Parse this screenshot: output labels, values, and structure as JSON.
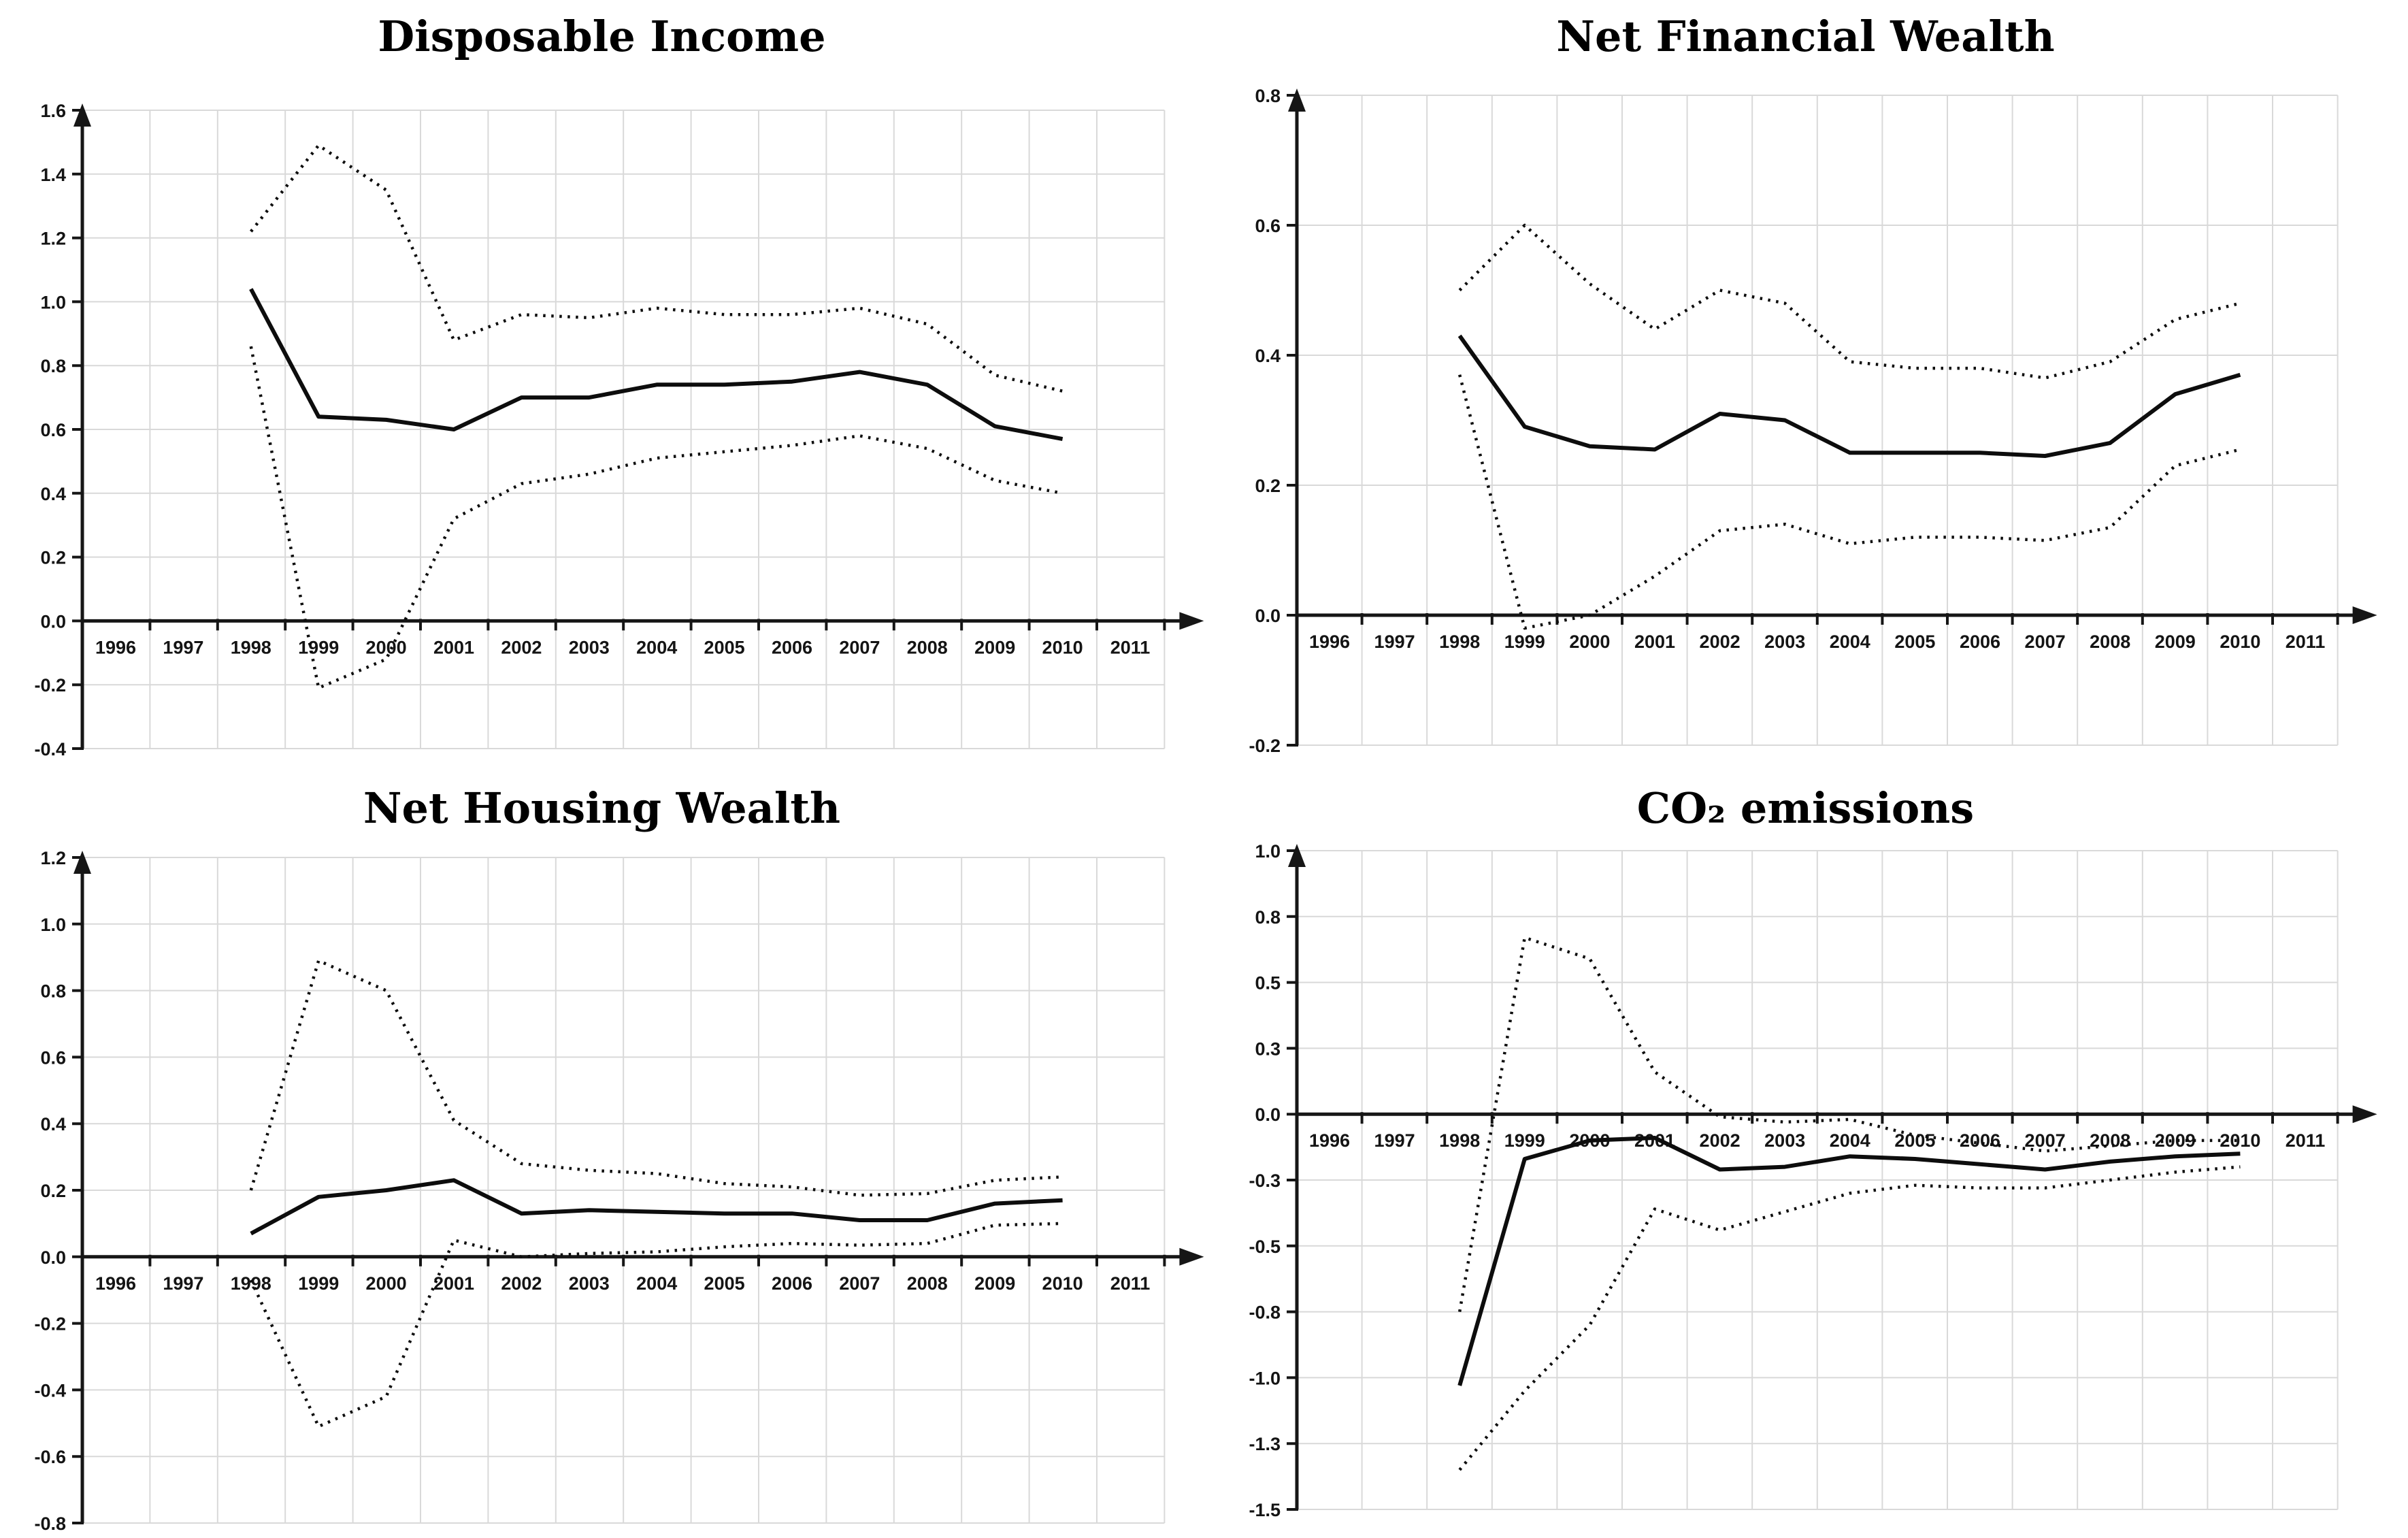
{
  "panel": {
    "background_color": "#ffffff",
    "line_color": "#0d0d0d",
    "grid_color": "#d9d9d9",
    "x_axis_years_shown": [
      1996,
      1997,
      1998,
      1999,
      2000,
      2001,
      2002,
      2003,
      2004,
      2005,
      2006,
      2007,
      2008,
      2009,
      2010,
      2011
    ],
    "data_years": [
      1998,
      1999,
      2000,
      2001,
      2002,
      2003,
      2004,
      2005,
      2006,
      2007,
      2008,
      2009,
      2010
    ]
  },
  "chart_data": [
    {
      "type": "line",
      "title": "Disposable Income",
      "x": [
        1998,
        1999,
        2000,
        2001,
        2002,
        2003,
        2004,
        2005,
        2006,
        2007,
        2008,
        2009,
        2010
      ],
      "series": [
        {
          "name": "central estimate",
          "style": "solid",
          "values": [
            1.04,
            0.64,
            0.63,
            0.6,
            0.7,
            0.7,
            0.74,
            0.74,
            0.75,
            0.78,
            0.74,
            0.61,
            0.57
          ]
        },
        {
          "name": "upper confidence band",
          "style": "dotted",
          "values": [
            1.22,
            1.49,
            1.35,
            0.88,
            0.96,
            0.95,
            0.98,
            0.96,
            0.96,
            0.98,
            0.93,
            0.77,
            0.72
          ]
        },
        {
          "name": "lower confidence band",
          "style": "dotted",
          "values": [
            0.86,
            -0.21,
            -0.12,
            0.32,
            0.43,
            0.46,
            0.51,
            0.53,
            0.55,
            0.58,
            0.54,
            0.44,
            0.4
          ]
        }
      ],
      "xticks": [
        1996,
        1997,
        1998,
        1999,
        2000,
        2001,
        2002,
        2003,
        2004,
        2005,
        2006,
        2007,
        2008,
        2009,
        2010,
        2011
      ],
      "ylim": [
        -0.4,
        1.6
      ],
      "ytick_labels": [
        "1.6",
        "1.4",
        "1.2",
        "1.0",
        "0.8",
        "0.6",
        "0.4",
        "0.2",
        "0.0",
        "-0.2",
        "-0.4"
      ],
      "ytick_values": [
        1.6,
        1.4,
        1.2,
        1.0,
        0.8,
        0.6,
        0.4,
        0.2,
        0.0,
        -0.2,
        -0.4
      ],
      "xlabel": "",
      "ylabel": "",
      "grid": true,
      "legend": "none"
    },
    {
      "type": "line",
      "title": "Net Financial Wealth",
      "x": [
        1998,
        1999,
        2000,
        2001,
        2002,
        2003,
        2004,
        2005,
        2006,
        2007,
        2008,
        2009,
        2010
      ],
      "series": [
        {
          "name": "central estimate",
          "style": "solid",
          "values": [
            0.43,
            0.29,
            0.26,
            0.255,
            0.31,
            0.3,
            0.25,
            0.25,
            0.25,
            0.245,
            0.265,
            0.34,
            0.37
          ]
        },
        {
          "name": "upper confidence band",
          "style": "dotted",
          "values": [
            0.5,
            0.6,
            0.51,
            0.44,
            0.5,
            0.48,
            0.39,
            0.38,
            0.38,
            0.365,
            0.39,
            0.455,
            0.48
          ]
        },
        {
          "name": "lower confidence band",
          "style": "dotted",
          "values": [
            0.37,
            -0.02,
            0.0,
            0.06,
            0.13,
            0.14,
            0.11,
            0.12,
            0.12,
            0.115,
            0.135,
            0.23,
            0.255
          ]
        }
      ],
      "xticks": [
        1996,
        1997,
        1998,
        1999,
        2000,
        2001,
        2002,
        2003,
        2004,
        2005,
        2006,
        2007,
        2008,
        2009,
        2010,
        2011
      ],
      "ylim": [
        -0.2,
        0.8
      ],
      "ytick_labels": [
        "0.8",
        "0.6",
        "0.4",
        "0.2",
        "0.0",
        "-0.2"
      ],
      "ytick_values": [
        0.8,
        0.6,
        0.4,
        0.2,
        0.0,
        -0.2
      ],
      "xlabel": "",
      "ylabel": "",
      "grid": true,
      "legend": "none"
    },
    {
      "type": "line",
      "title": "Net Housing Wealth",
      "x": [
        1998,
        1999,
        2000,
        2001,
        2002,
        2003,
        2004,
        2005,
        2006,
        2007,
        2008,
        2009,
        2010
      ],
      "series": [
        {
          "name": "central estimate",
          "style": "solid",
          "values": [
            0.07,
            0.18,
            0.2,
            0.23,
            0.13,
            0.14,
            0.135,
            0.13,
            0.13,
            0.11,
            0.11,
            0.16,
            0.17
          ]
        },
        {
          "name": "upper confidence band",
          "style": "dotted",
          "values": [
            0.2,
            0.89,
            0.8,
            0.41,
            0.28,
            0.26,
            0.25,
            0.22,
            0.21,
            0.185,
            0.19,
            0.23,
            0.24
          ]
        },
        {
          "name": "lower confidence band",
          "style": "dotted",
          "values": [
            -0.07,
            -0.51,
            -0.42,
            0.05,
            0.0,
            0.01,
            0.015,
            0.03,
            0.04,
            0.035,
            0.04,
            0.095,
            0.1
          ]
        }
      ],
      "xticks": [
        1996,
        1997,
        1998,
        1999,
        2000,
        2001,
        2002,
        2003,
        2004,
        2005,
        2006,
        2007,
        2008,
        2009,
        2010,
        2011
      ],
      "ylim": [
        -0.8,
        1.2
      ],
      "ytick_labels": [
        "1.2",
        "1.0",
        "0.8",
        "0.6",
        "0.4",
        "0.2",
        "0.0",
        "-0.2",
        "-0.4",
        "-0.6",
        "-0.8"
      ],
      "ytick_values": [
        1.2,
        1.0,
        0.8,
        0.6,
        0.4,
        0.2,
        0.0,
        -0.2,
        -0.4,
        -0.6,
        -0.8
      ],
      "xlabel": "",
      "ylabel": "",
      "grid": true,
      "legend": "none"
    },
    {
      "type": "line",
      "title": "CO₂ emissions",
      "x": [
        1998,
        1999,
        2000,
        2001,
        2002,
        2003,
        2004,
        2005,
        2006,
        2007,
        2008,
        2009,
        2010
      ],
      "series": [
        {
          "name": "central estimate",
          "style": "solid",
          "values": [
            -1.03,
            -0.17,
            -0.1,
            -0.09,
            -0.21,
            -0.2,
            -0.16,
            -0.17,
            -0.19,
            -0.21,
            -0.18,
            -0.16,
            -0.15
          ]
        },
        {
          "name": "upper confidence band",
          "style": "dotted",
          "values": [
            -0.75,
            0.67,
            0.59,
            0.16,
            -0.01,
            -0.03,
            -0.02,
            -0.08,
            -0.11,
            -0.14,
            -0.12,
            -0.1,
            -0.1
          ]
        },
        {
          "name": "lower confidence band",
          "style": "dotted",
          "values": [
            -1.35,
            -1.05,
            -0.8,
            -0.36,
            -0.44,
            -0.37,
            -0.3,
            -0.27,
            -0.28,
            -0.28,
            -0.25,
            -0.22,
            -0.2
          ]
        }
      ],
      "xticks": [
        1996,
        1997,
        1998,
        1999,
        2000,
        2001,
        2002,
        2003,
        2004,
        2005,
        2006,
        2007,
        2008,
        2009,
        2010,
        2011
      ],
      "ylim": [
        -1.5,
        1.0
      ],
      "ytick_labels": [
        "1.0",
        "0.8",
        "0.5",
        "0.3",
        "0.0",
        "-0.3",
        "-0.5",
        "-0.8",
        "-1.0",
        "-1.3",
        "-1.5"
      ],
      "ytick_values": [
        1.0,
        0.75,
        0.5,
        0.25,
        0.0,
        -0.25,
        -0.5,
        -0.75,
        -1.0,
        -1.25,
        -1.5
      ],
      "xlabel": "",
      "ylabel": "",
      "grid": true,
      "legend": "none"
    }
  ]
}
